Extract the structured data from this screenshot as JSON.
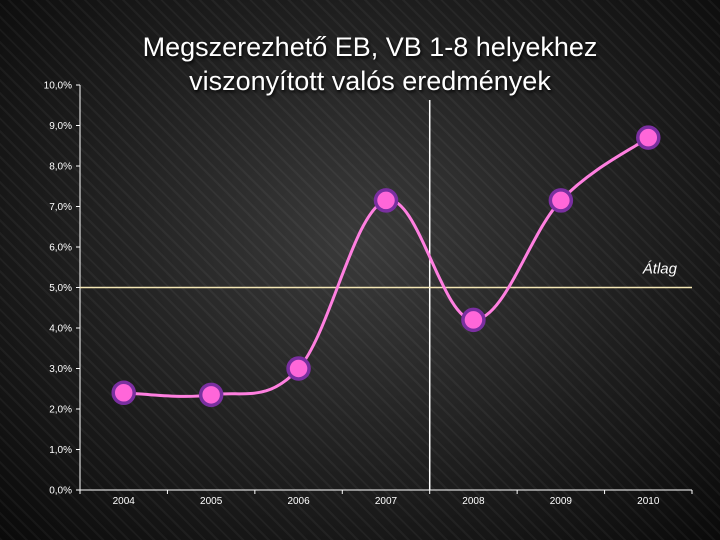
{
  "chart_data": {
    "type": "line",
    "title_lines": [
      "Megszerezhető EB, VB 1-8 helyekhez",
      "viszonyított valós eredmények"
    ],
    "x": [
      "2004",
      "2005",
      "2006",
      "2007",
      "2008",
      "2009",
      "2010"
    ],
    "y_ticks": [
      "0,0%",
      "1,0%",
      "2,0%",
      "3,0%",
      "4,0%",
      "5,0%",
      "6,0%",
      "7,0%",
      "8,0%",
      "9,0%",
      "10,0%"
    ],
    "ylim": [
      0,
      10
    ],
    "series": [
      {
        "values": [
          2.4,
          2.35,
          3.0,
          7.15,
          4.2,
          7.15,
          8.7
        ],
        "color": "#ff7fe0",
        "marker_color": "#ff66d9",
        "marker_border": "#7a2fa0"
      }
    ],
    "reference_line": {
      "value": 5.0,
      "label": "Átlag",
      "color": "#f3e6b4"
    },
    "divider_after_category": "2007",
    "grid": false,
    "axis_color": "#ffffff"
  }
}
